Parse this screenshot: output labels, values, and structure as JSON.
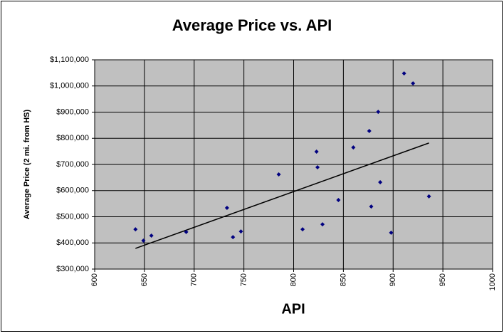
{
  "chart_data": {
    "type": "scatter",
    "title": "Average Price vs. API",
    "x_label": "API",
    "y_label": "Average Price (2 mi. from HS)",
    "x": [
      641,
      649,
      657,
      692,
      733,
      739,
      747,
      785,
      809,
      823,
      824,
      829,
      845,
      860,
      876,
      878,
      885,
      887,
      898,
      911,
      920,
      936
    ],
    "series": [
      {
        "color": "#000080",
        "values": [
          452000,
          409000,
          428000,
          442000,
          534000,
          422000,
          444000,
          662000,
          452000,
          749000,
          689000,
          471000,
          564000,
          765000,
          828000,
          539000,
          901000,
          632000,
          439000,
          1048000,
          1010000,
          578000
        ]
      }
    ],
    "trendline": {
      "color": "#000000",
      "x": [
        641,
        936
      ],
      "values": [
        379000,
        782000
      ]
    },
    "xlim": [
      600,
      1000
    ],
    "xticks": [
      600,
      650,
      700,
      750,
      800,
      850,
      900,
      950,
      1000
    ],
    "ylim": [
      300000,
      1100000
    ],
    "yticks": [
      {
        "value": 300000,
        "label": "$300,000"
      },
      {
        "value": 400000,
        "label": "$400,000"
      },
      {
        "value": 500000,
        "label": "$500,000"
      },
      {
        "value": 600000,
        "label": "$600,000"
      },
      {
        "value": 700000,
        "label": "$700,000"
      },
      {
        "value": 800000,
        "label": "$800,000"
      },
      {
        "value": 900000,
        "label": "$900,000"
      },
      {
        "value": 1000000,
        "label": "$1,000,000"
      },
      {
        "value": 1100000,
        "label": "$1,100,000"
      }
    ],
    "grid": true,
    "plot_background": "#c0c0c0"
  }
}
